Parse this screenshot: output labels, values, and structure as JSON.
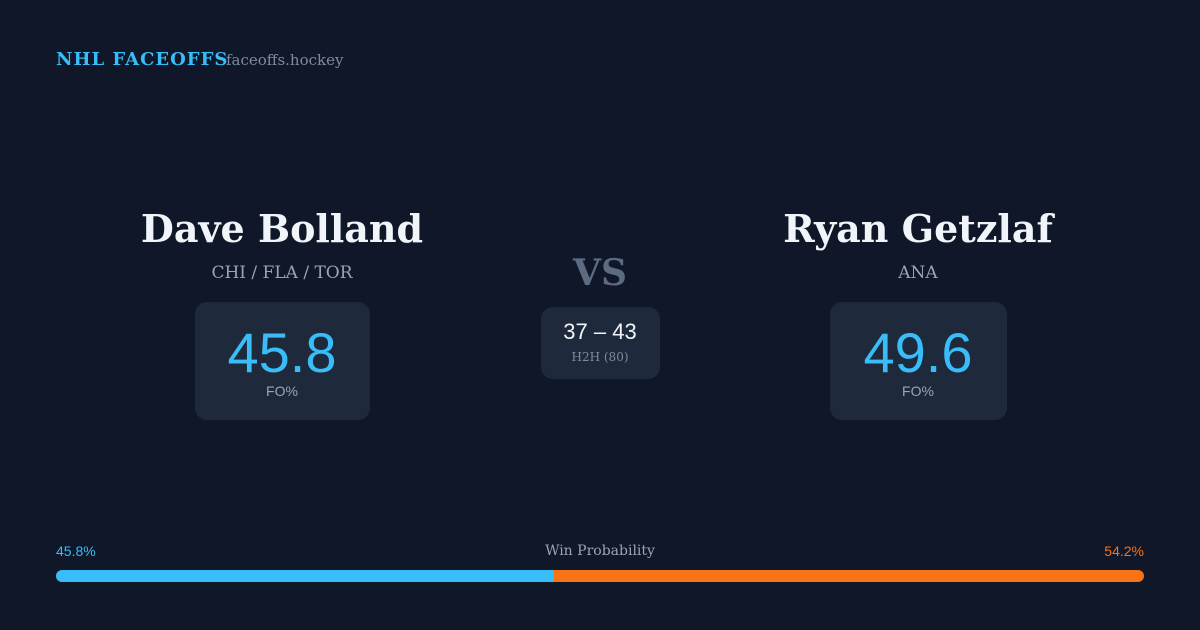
{
  "header": {
    "brand": "NHL FACEOFFS",
    "site": "faceoffs.hockey"
  },
  "left_player": {
    "name": "Dave Bolland",
    "teams": "CHI / FLA / TOR",
    "fo_pct": 45.8,
    "fo_label": "FO%"
  },
  "vs": "VS",
  "h2h": {
    "score": "37 – 43",
    "label": "H2H (80)"
  },
  "right_player": {
    "name": "Ryan Getzlaf",
    "teams": "ANA",
    "fo_pct": 49.6,
    "fo_label": "FO%"
  },
  "win_probability": {
    "title": "Win Probability",
    "left": {
      "value": 45.8,
      "label": "45.8%",
      "color": "#38bdf8"
    },
    "right": {
      "value": 54.2,
      "label": "54.2%",
      "color": "#f97316"
    }
  }
}
